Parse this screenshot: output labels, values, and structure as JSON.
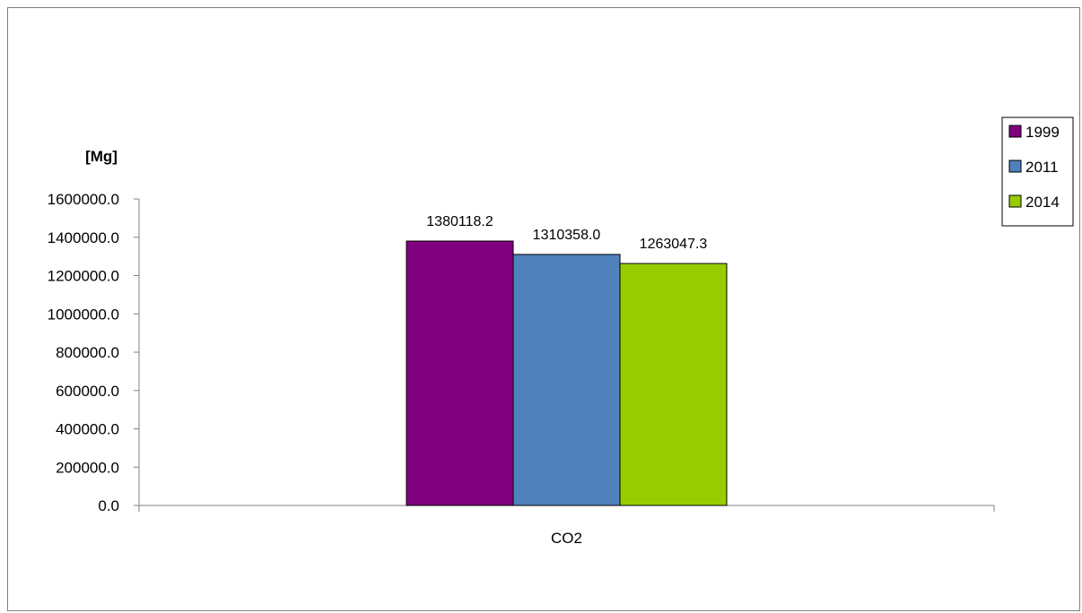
{
  "chart_data": {
    "type": "bar",
    "title": "",
    "ylabel": "[Mg]",
    "xlabel": "",
    "categories": [
      "CO2"
    ],
    "ylim": [
      0,
      1600000
    ],
    "yticks": [
      0,
      200000,
      400000,
      600000,
      800000,
      1000000,
      1200000,
      1400000,
      1600000
    ],
    "ytick_labels": [
      "0.0",
      "200000.0",
      "400000.0",
      "600000.0",
      "800000.0",
      "1000000.0",
      "1200000.0",
      "1400000.0",
      "1600000.0"
    ],
    "series": [
      {
        "name": "1999",
        "values": [
          1380118.2
        ],
        "label": "1380118.2",
        "color": "#800080"
      },
      {
        "name": "2011",
        "values": [
          1310358.0
        ],
        "label": "1310358.0",
        "color": "#4f81bd"
      },
      {
        "name": "2014",
        "values": [
          1263047.3
        ],
        "label": "1263047.3",
        "color": "#99cc00"
      }
    ],
    "grid": false,
    "legend": "right"
  }
}
